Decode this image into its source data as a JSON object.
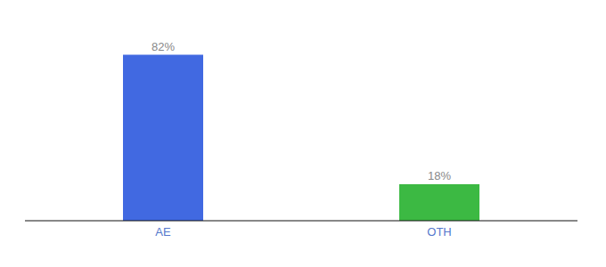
{
  "chart_data": {
    "type": "bar",
    "categories": [
      "AE",
      "OTH"
    ],
    "values": [
      82,
      18
    ],
    "value_labels": [
      "82%",
      "18%"
    ],
    "colors": [
      "#4169e1",
      "#3cb943"
    ],
    "ylim": [
      0,
      95
    ],
    "data_labels": true,
    "tick_labels": "x",
    "grid": false
  }
}
